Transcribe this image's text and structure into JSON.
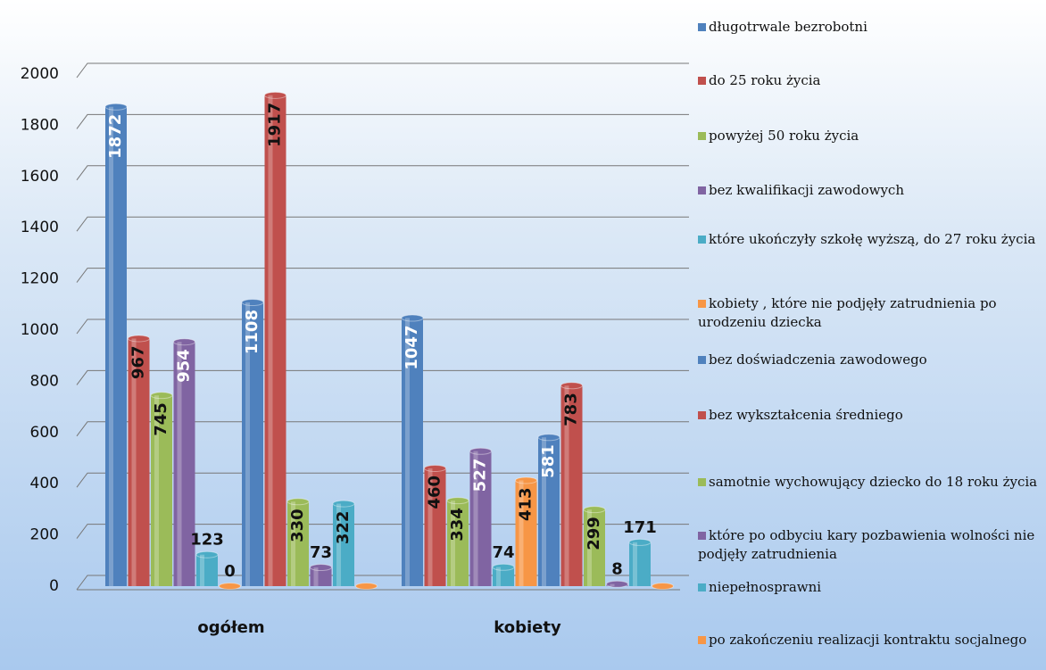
{
  "chart_data": {
    "type": "bar",
    "categories": [
      "ogółem",
      "kobiety"
    ],
    "ylim": [
      0,
      2000
    ],
    "yticks": [
      0,
      200,
      400,
      600,
      800,
      1000,
      1200,
      1400,
      1600,
      1800,
      2000
    ],
    "grid": true,
    "legend": "right",
    "series": [
      {
        "name": "długotrwale bezrobotni",
        "color": "#4f81bd",
        "values": [
          1872,
          1047
        ]
      },
      {
        "name": "do 25 roku życia",
        "color": "#c0504d",
        "values": [
          967,
          460
        ]
      },
      {
        "name": "powyżej 50 roku życia",
        "color": "#9bbb59",
        "values": [
          745,
          334
        ]
      },
      {
        "name": "bez kwalifikacji zawodowych",
        "color": "#8064a2",
        "values": [
          954,
          527
        ]
      },
      {
        "name": "które ukończyły szkołę wyższą, do 27 roku życia",
        "color": "#4bacc6",
        "values": [
          123,
          74
        ]
      },
      {
        "name": "kobiety , które nie podjęły zatrudnienia po urodzeniu dziecka",
        "color": "#f79646",
        "values": [
          0,
          413
        ]
      },
      {
        "name": "bez doświadczenia zawodowego",
        "color": "#4f81bd",
        "values": [
          1108,
          581
        ]
      },
      {
        "name": "bez wykształcenia średniego",
        "color": "#c0504d",
        "values": [
          1917,
          783
        ]
      },
      {
        "name": "samotnie wychowujący dziecko do 18 roku życia",
        "color": "#9bbb59",
        "values": [
          330,
          299
        ]
      },
      {
        "name": "które po odbyciu kary pozbawienia wolności nie podjęły zatrudnienia",
        "color": "#8064a2",
        "values": [
          73,
          8
        ]
      },
      {
        "name": "niepełnosprawni",
        "color": "#4bacc6",
        "values": [
          322,
          171
        ]
      },
      {
        "name": "po zakończeniu realizacji kontraktu socjalnego",
        "color": "#f79646",
        "values": [
          0,
          0
        ],
        "value_labels": [
          null,
          null
        ]
      }
    ]
  }
}
